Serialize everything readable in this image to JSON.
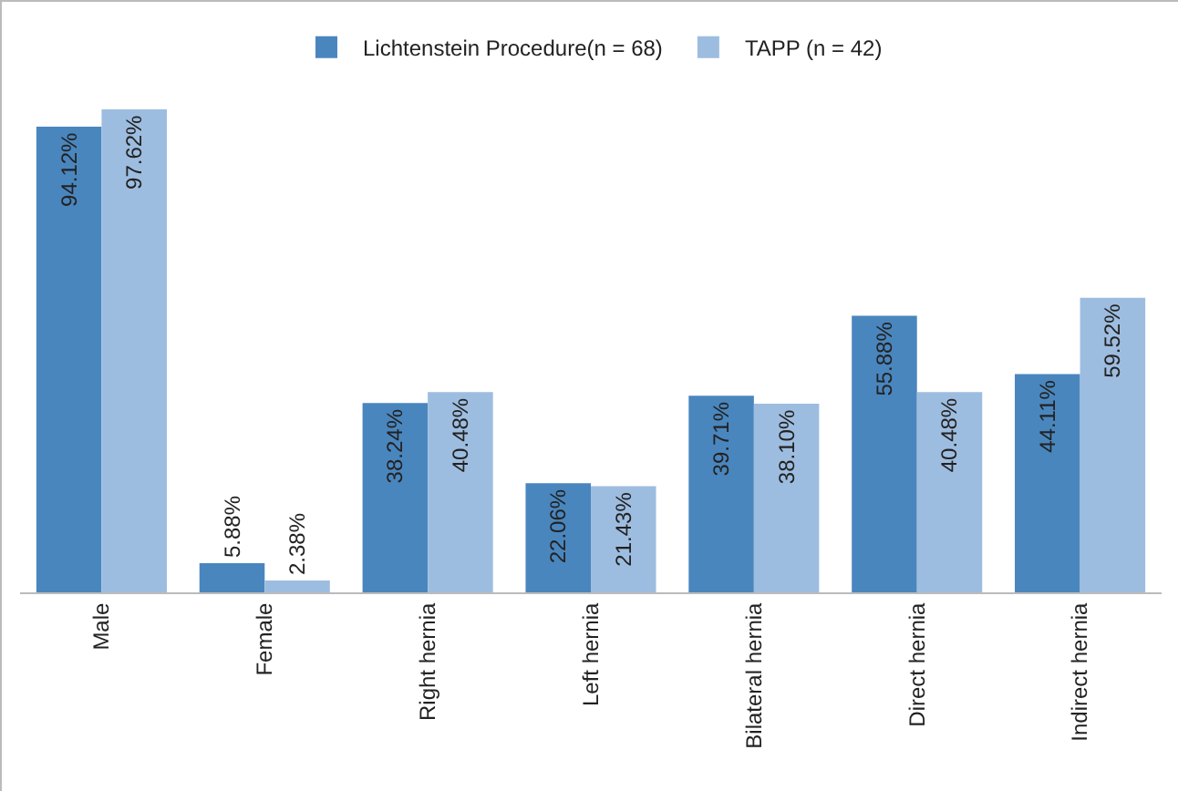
{
  "chart_data": {
    "type": "bar",
    "categories": [
      "Male",
      "Female",
      "Right hernia",
      "Left hernia",
      "Bilateral hernia",
      "Direct hernia",
      "Indirect hernia"
    ],
    "series": [
      {
        "name": "Lichtenstein Procedure(n = 68)",
        "color": "#4a86be",
        "values": [
          94.12,
          5.88,
          38.24,
          22.06,
          39.71,
          55.88,
          44.11
        ],
        "value_labels": [
          "94.12%",
          "5.88%",
          "38.24%",
          "22.06%",
          "39.71%",
          "55.88%",
          "44.11%"
        ]
      },
      {
        "name": "TAPP (n = 42)",
        "color": "#9dbde0",
        "values": [
          97.62,
          2.38,
          40.48,
          21.43,
          38.1,
          40.48,
          59.52
        ],
        "value_labels": [
          "97.62%",
          "2.38%",
          "40.48%",
          "21.43%",
          "38.10%",
          "40.48%",
          "59.52%"
        ]
      }
    ],
    "legend": "top"
  }
}
